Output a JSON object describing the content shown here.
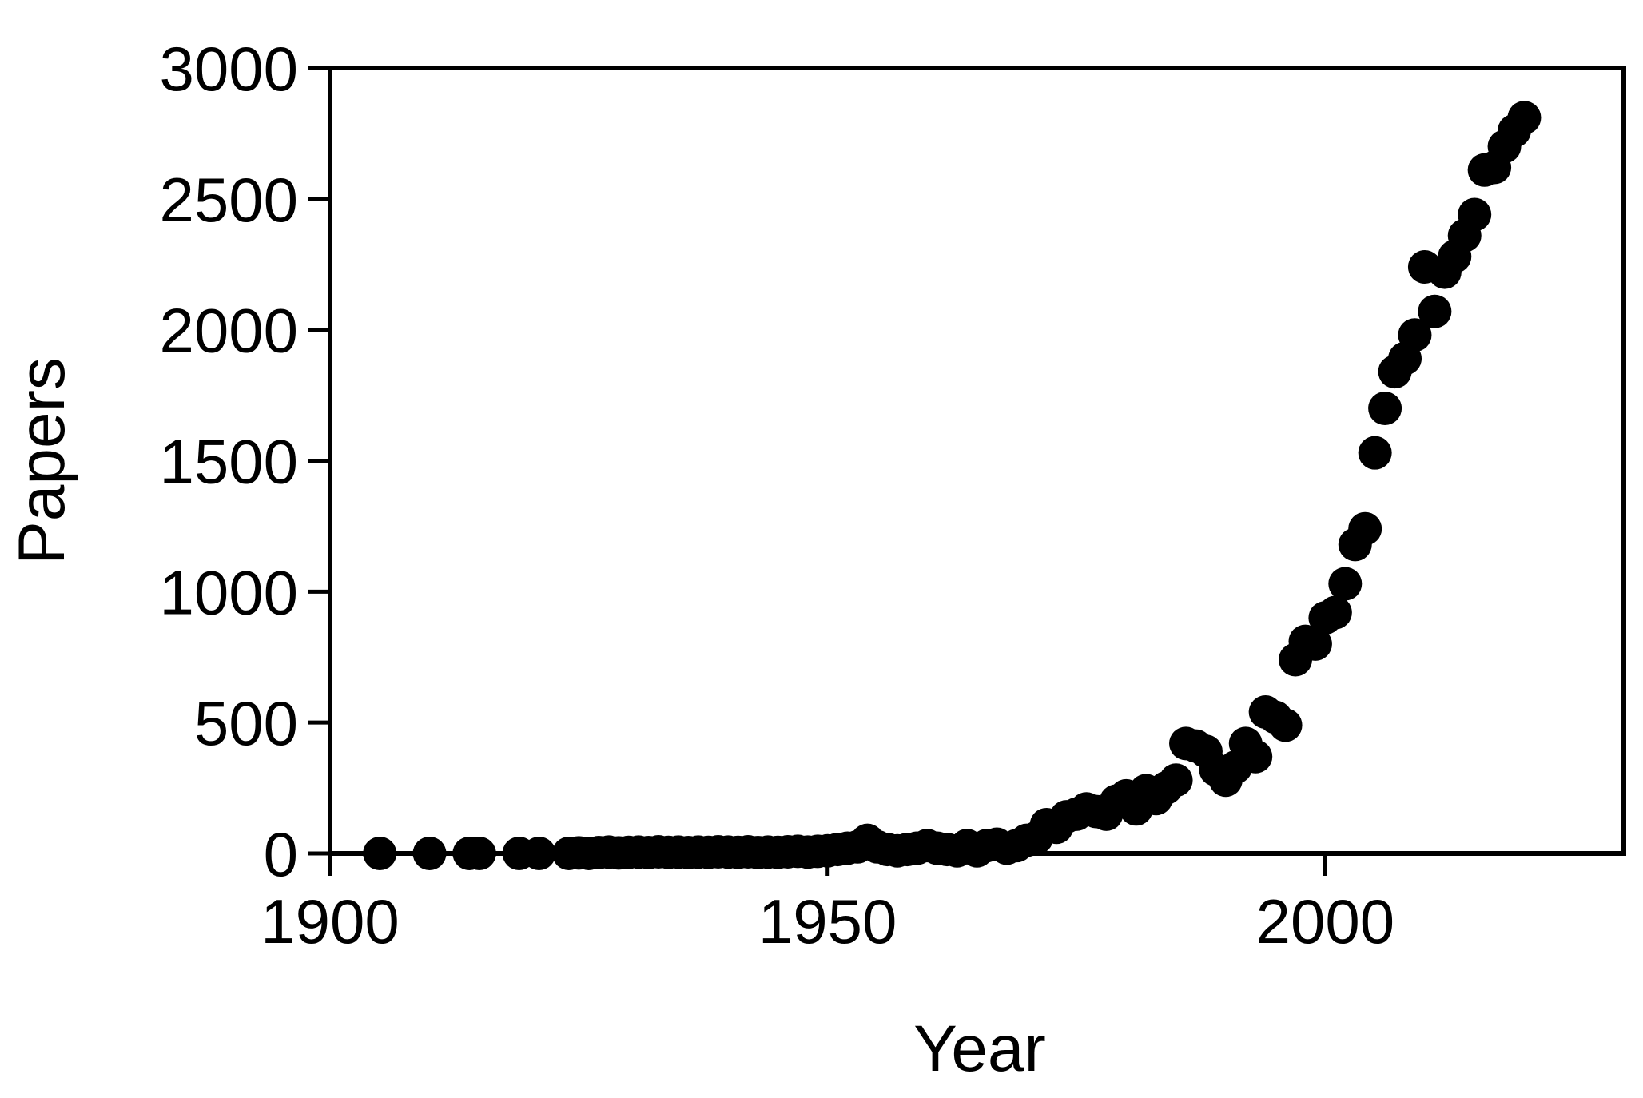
{
  "chart_data": {
    "type": "scatter",
    "x_label": "Year",
    "y_label": "Papers",
    "color": "#000000",
    "xlim": [
      1900,
      2030
    ],
    "xticks": [
      1900,
      1950,
      2000
    ],
    "ylim": [
      0,
      3000
    ],
    "yticks": [
      0,
      500,
      1000,
      1500,
      2000,
      2500,
      3000
    ],
    "x": [
      1905,
      1910,
      1914,
      1915,
      1919,
      1921,
      1924,
      1925,
      1926,
      1927,
      1928,
      1929,
      1930,
      1931,
      1932,
      1933,
      1934,
      1935,
      1936,
      1937,
      1938,
      1939,
      1940,
      1941,
      1942,
      1943,
      1944,
      1945,
      1946,
      1947,
      1948,
      1949,
      1950,
      1951,
      1952,
      1953,
      1954,
      1955,
      1956,
      1957,
      1958,
      1959,
      1960,
      1961,
      1962,
      1963,
      1964,
      1965,
      1966,
      1967,
      1968,
      1969,
      1970,
      1971,
      1972,
      1973,
      1974,
      1975,
      1976,
      1977,
      1978,
      1979,
      1980,
      1981,
      1982,
      1983,
      1984,
      1985,
      1986,
      1987,
      1988,
      1989,
      1990,
      1991,
      1992,
      1993,
      1994,
      1995,
      1996,
      1997,
      1998,
      1999,
      2000,
      2001,
      2002,
      2003,
      2004,
      2005,
      2006,
      2007,
      2008,
      2009,
      2010,
      2011,
      2012,
      2013,
      2014,
      2015,
      2016,
      2017,
      2018,
      2019,
      2020
    ],
    "values": [
      0,
      0,
      0,
      0,
      0,
      0,
      0,
      2,
      0,
      3,
      5,
      2,
      4,
      5,
      3,
      6,
      4,
      5,
      3,
      5,
      4,
      6,
      5,
      4,
      6,
      3,
      5,
      4,
      6,
      8,
      5,
      8,
      10,
      15,
      20,
      25,
      50,
      25,
      15,
      10,
      15,
      20,
      30,
      20,
      15,
      10,
      30,
      10,
      30,
      35,
      20,
      30,
      50,
      60,
      110,
      100,
      140,
      150,
      170,
      160,
      150,
      200,
      220,
      170,
      240,
      210,
      250,
      280,
      420,
      410,
      390,
      320,
      280,
      330,
      420,
      370,
      540,
      520,
      490,
      740,
      810,
      800,
      900,
      920,
      1030,
      1180,
      1240,
      1530,
      1700,
      1840,
      1890,
      1980,
      2240,
      2070,
      2220,
      2280,
      2360,
      2440,
      2610,
      2620,
      2700,
      2760,
      2810
    ]
  }
}
